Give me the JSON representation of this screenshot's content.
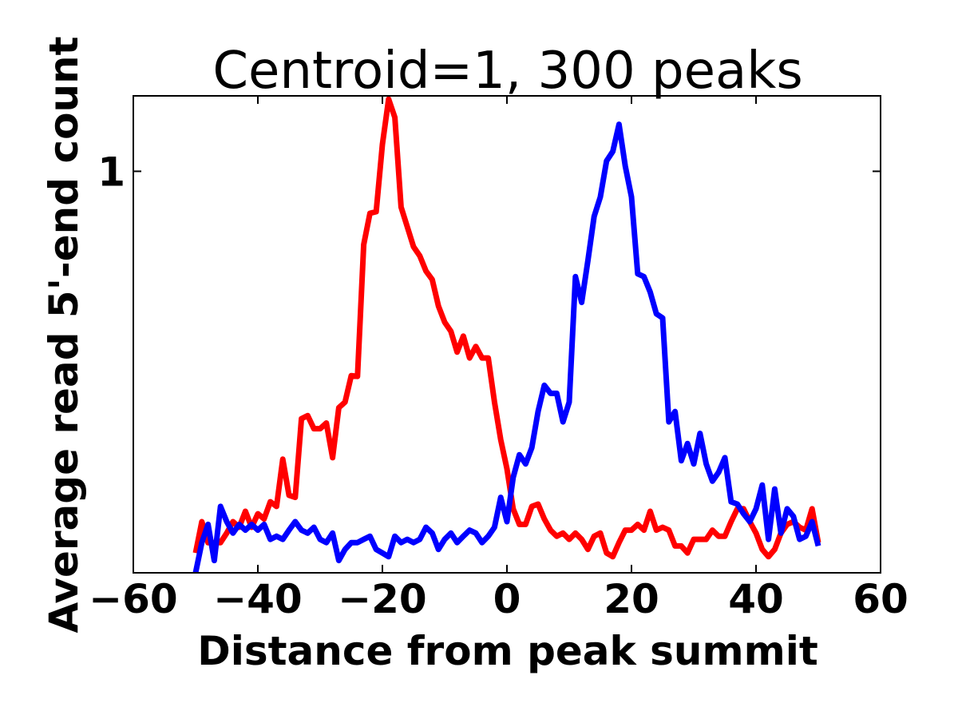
{
  "chart_data": {
    "type": "line",
    "title": "Centroid=1, 300 peaks",
    "xlabel": "Distance from peak summit",
    "ylabel": "Average read 5'-end count",
    "xlim": [
      -60,
      60
    ],
    "ylim": [
      0.025,
      2
    ],
    "yscale": "log",
    "grid": false,
    "xticks": [
      -60,
      -40,
      -20,
      0,
      20,
      40,
      60
    ],
    "xtick_labels": [
      "−60",
      "−40",
      "−20",
      "0",
      "20",
      "40",
      "60"
    ],
    "yticks": [
      1
    ],
    "ytick_labels": [
      "1"
    ],
    "x": [
      -50,
      -49,
      -48,
      -47,
      -46,
      -45,
      -44,
      -43,
      -42,
      -41,
      -40,
      -39,
      -38,
      -37,
      -36,
      -35,
      -34,
      -33,
      -32,
      -31,
      -30,
      -29,
      -28,
      -27,
      -26,
      -25,
      -24,
      -23,
      -22,
      -21,
      -20,
      -19,
      -18,
      -17,
      -16,
      -15,
      -14,
      -13,
      -12,
      -11,
      -10,
      -9,
      -8,
      -7,
      -6,
      -5,
      -4,
      -3,
      -2,
      -1,
      0,
      1,
      2,
      3,
      4,
      5,
      6,
      7,
      8,
      9,
      10,
      11,
      12,
      13,
      14,
      15,
      16,
      17,
      18,
      19,
      20,
      21,
      22,
      23,
      24,
      25,
      26,
      27,
      28,
      29,
      30,
      31,
      32,
      33,
      34,
      35,
      36,
      37,
      38,
      39,
      40,
      41,
      42,
      43,
      44,
      45,
      46,
      47,
      48,
      49,
      50
    ],
    "series": [
      {
        "name": "red",
        "color": "#ff0000",
        "values": [
          0.03,
          0.04,
          0.033,
          0.033,
          0.033,
          0.036,
          0.04,
          0.038,
          0.044,
          0.038,
          0.043,
          0.041,
          0.048,
          0.046,
          0.071,
          0.051,
          0.05,
          0.103,
          0.106,
          0.094,
          0.094,
          0.099,
          0.072,
          0.114,
          0.12,
          0.153,
          0.152,
          0.51,
          0.68,
          0.69,
          1.28,
          1.94,
          1.64,
          0.72,
          0.6,
          0.5,
          0.46,
          0.4,
          0.37,
          0.29,
          0.25,
          0.23,
          0.19,
          0.22,
          0.18,
          0.2,
          0.18,
          0.18,
          0.12,
          0.085,
          0.065,
          0.045,
          0.039,
          0.039,
          0.046,
          0.047,
          0.041,
          0.037,
          0.035,
          0.036,
          0.034,
          0.036,
          0.034,
          0.031,
          0.035,
          0.036,
          0.03,
          0.029,
          0.033,
          0.037,
          0.037,
          0.039,
          0.037,
          0.044,
          0.037,
          0.038,
          0.037,
          0.032,
          0.032,
          0.03,
          0.034,
          0.034,
          0.034,
          0.037,
          0.035,
          0.035,
          0.04,
          0.045,
          0.045,
          0.04,
          0.036,
          0.031,
          0.029,
          0.031,
          0.036,
          0.039,
          0.04,
          0.038,
          0.037,
          0.045,
          0.033
        ]
      },
      {
        "name": "blue",
        "color": "#0000ff",
        "values": [
          0.025,
          0.033,
          0.039,
          0.028,
          0.046,
          0.04,
          0.036,
          0.039,
          0.037,
          0.039,
          0.037,
          0.039,
          0.034,
          0.035,
          0.034,
          0.037,
          0.04,
          0.037,
          0.036,
          0.038,
          0.034,
          0.033,
          0.036,
          0.028,
          0.031,
          0.033,
          0.033,
          0.034,
          0.035,
          0.031,
          0.03,
          0.029,
          0.035,
          0.033,
          0.034,
          0.033,
          0.034,
          0.038,
          0.036,
          0.031,
          0.034,
          0.036,
          0.033,
          0.035,
          0.037,
          0.036,
          0.033,
          0.035,
          0.038,
          0.05,
          0.04,
          0.06,
          0.074,
          0.068,
          0.079,
          0.11,
          0.14,
          0.13,
          0.13,
          0.1,
          0.12,
          0.38,
          0.3,
          0.44,
          0.66,
          0.79,
          1.1,
          1.2,
          1.54,
          1.05,
          0.79,
          0.39,
          0.38,
          0.33,
          0.27,
          0.26,
          0.1,
          0.11,
          0.07,
          0.082,
          0.068,
          0.09,
          0.068,
          0.058,
          0.063,
          0.072,
          0.048,
          0.047,
          0.043,
          0.04,
          0.045,
          0.056,
          0.034,
          0.054,
          0.036,
          0.045,
          0.042,
          0.034,
          0.035,
          0.04,
          0.032
        ]
      }
    ]
  }
}
